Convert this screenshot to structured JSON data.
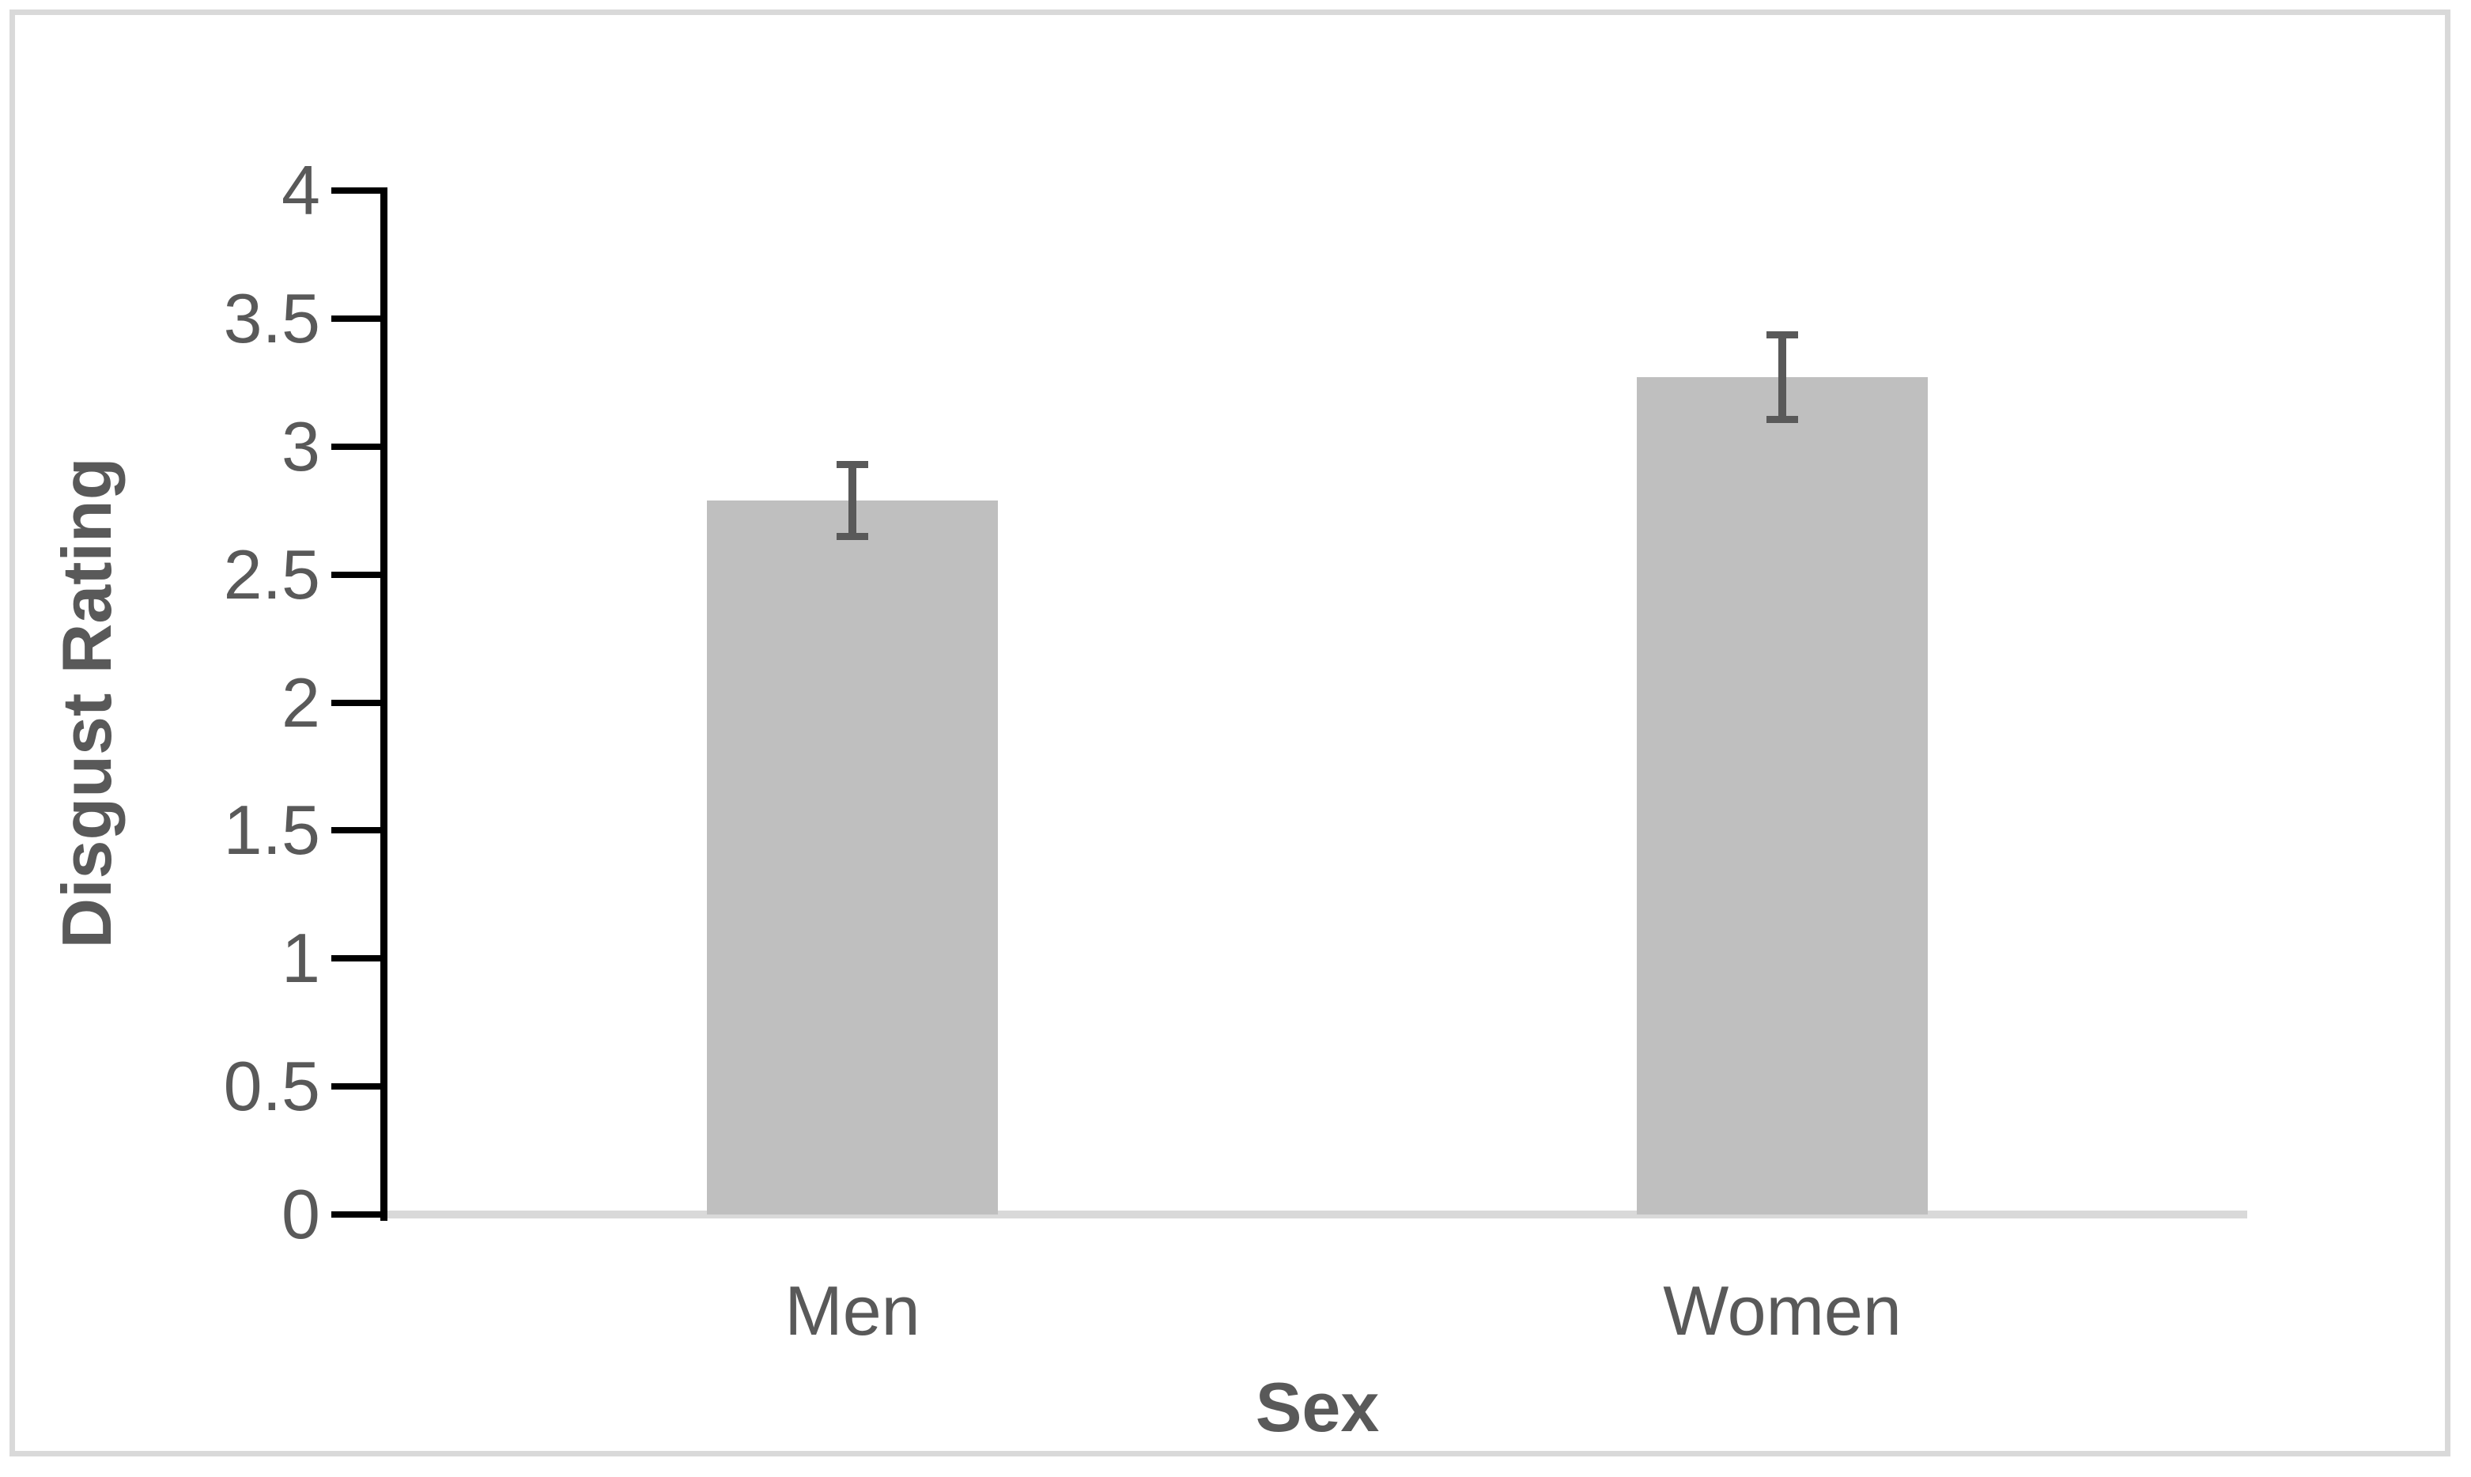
{
  "figure": {
    "background": "#ffffff",
    "border_color": "#d9d9d9"
  },
  "chart_data": {
    "type": "bar",
    "title": "",
    "categories": [
      "Men",
      "Women"
    ],
    "values": [
      2.79,
      3.27
    ],
    "errors": [
      0.14,
      0.165
    ],
    "xlabel": "Sex",
    "ylabel": "Disgust Rating",
    "ylim": [
      0,
      4
    ],
    "ytick_step": 0.5,
    "ytick_labels": [
      "4",
      "3.5",
      "3",
      "2.5",
      "2",
      "1.5",
      "1",
      "0.5",
      "0"
    ],
    "grid": false,
    "legend_position": "none",
    "bar_color": "#bfbfbf",
    "error_bar_color": "#595959",
    "axis_line_color": "#000000",
    "baseline_color": "#d9d9d9",
    "text_color": "#595959"
  }
}
